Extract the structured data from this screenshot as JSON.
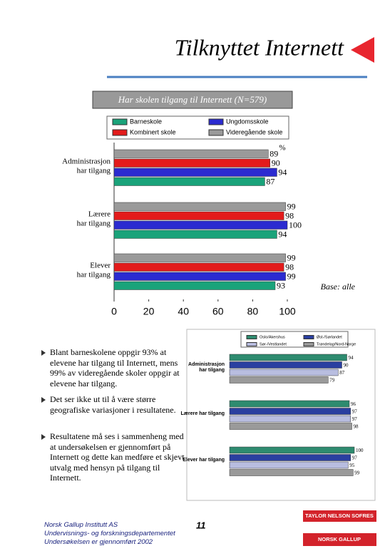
{
  "title": "Tilknyttet Internett",
  "bullets": [
    "Blant barneskolene oppgir 93% at elevene har tilgang til Internett, mens 99% av videregående skoler oppgir at elevene har tilgang.",
    "Det ser ikke ut til å være større geografiske variasjoner i resultatene.",
    "Resultatene må ses i sammenheng med at undersøkelsen er gjennomført på Internett og dette kan medføre et skjevt utvalg med hensyn på tilgang til Internett."
  ],
  "footer": {
    "lines": [
      "Norsk Gallup Institutt AS",
      "Undervisnings- og forskningsdepartementet",
      "Undersøkelsen er gjennomført 2002"
    ],
    "page": "11",
    "logo1": "TAYLOR NELSON SOFRES",
    "logo2": "NORSK GALLUP"
  },
  "chart_data": [
    {
      "type": "bar",
      "orientation": "horizontal",
      "subtitle": "Har skolen tilgang til Internett (N=579)",
      "annotation_unit": "%",
      "annotation_base": "Base: alle",
      "categories": [
        "Administrasjon har tilgang",
        "Lærere har tilgang",
        "Elever har tilgang"
      ],
      "series": [
        {
          "name": "Barneskole",
          "color": "#1aa37a",
          "values": [
            87,
            94,
            93
          ]
        },
        {
          "name": "Ungdomsskole",
          "color": "#2b2bd0",
          "values": [
            94,
            100,
            99
          ]
        },
        {
          "name": "Kombinert skole",
          "color": "#e31b1b",
          "values": [
            90,
            98,
            98
          ]
        },
        {
          "name": "Videregående skole",
          "color": "#9a9a9a",
          "values": [
            89,
            99,
            99
          ]
        }
      ],
      "xlim": [
        0,
        100
      ],
      "xticks": [
        0,
        20,
        40,
        60,
        80,
        100
      ]
    },
    {
      "type": "bar",
      "orientation": "horizontal",
      "categories": [
        "Administrasjon har tilgang",
        "Lærere har tilgang",
        "Elever har tilgang"
      ],
      "series": [
        {
          "name": "Oslo/Akershus",
          "color": "#2e8b6f",
          "values": [
            94,
            96,
            100
          ]
        },
        {
          "name": "Øst-/Sørlandet",
          "color": "#2a3fa0",
          "values": [
            90,
            97,
            97
          ]
        },
        {
          "name": "Sør-/Vestlandet",
          "color": "#b8bde0",
          "values": [
            87,
            97,
            95
          ]
        },
        {
          "name": "Trøndelag/Nord-Norge",
          "color": "#9a9a9a",
          "values": [
            79,
            98,
            99
          ]
        }
      ],
      "xlim": [
        0,
        100
      ]
    }
  ]
}
